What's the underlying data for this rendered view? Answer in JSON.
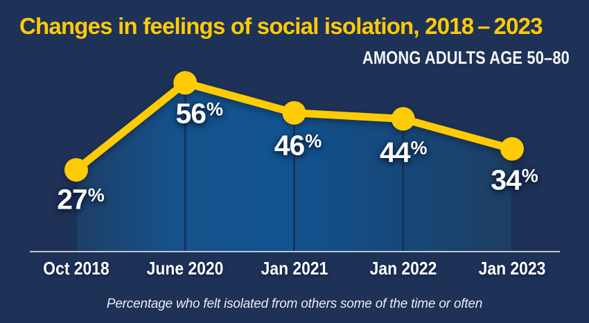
{
  "colors": {
    "background": "#1e3157",
    "accent_yellow": "#ffcb05",
    "area_fill_center": "#115490",
    "area_fill_edge": "#1e3e62",
    "separator_line": "#17345c",
    "axis_line": "#bfc5cd",
    "text_light": "#ffffff"
  },
  "header": {
    "title": "Changes in feelings of social isolation, 2018 – 2023",
    "subtitle": "AMONG ADULTS AGE 50–80"
  },
  "chart_data": {
    "type": "line",
    "title": "Changes in feelings of social isolation, 2018 – 2023",
    "subtitle": "AMONG ADULTS AGE 50–80",
    "caption": "Percentage who felt isolated from others some of the time or often",
    "categories": [
      "Oct 2018",
      "June 2020",
      "Jan 2021",
      "Jan 2022",
      "Jan 2023"
    ],
    "values": [
      27,
      56,
      46,
      44,
      34
    ],
    "unit": "%",
    "data_labels": [
      "27%",
      "56%",
      "46%",
      "44%",
      "34%"
    ],
    "ylim": [
      0,
      80
    ],
    "grid": false,
    "legend": false,
    "line_color": "#ffcb05",
    "marker": "circle",
    "area_fill": true
  }
}
